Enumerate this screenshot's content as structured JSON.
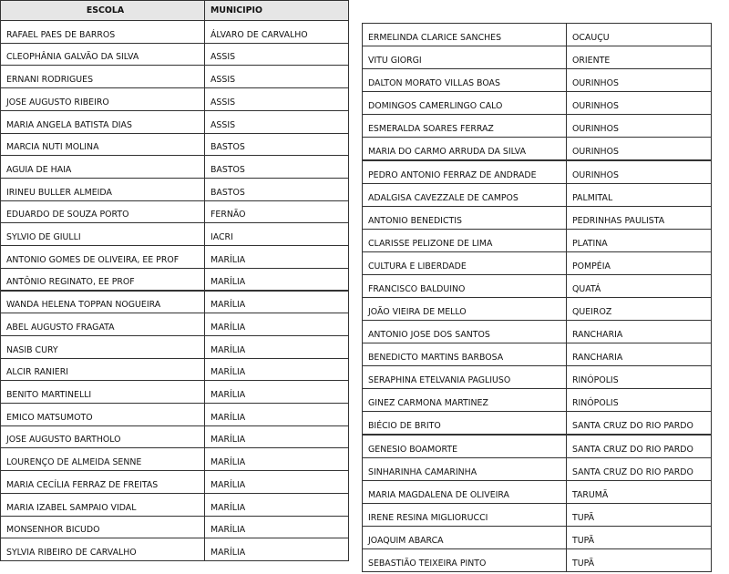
{
  "left_table": {
    "header": [
      "ESCOLA",
      "MUNICIPIO"
    ],
    "rows": [
      [
        "RAFAEL PAES DE BARROS",
        "ÁLVARO DE CARVALHO"
      ],
      [
        "CLEOPHÂNIA GALVÃO DA SILVA",
        "ASSIS"
      ],
      [
        "ERNANI RODRIGUES",
        "ASSIS"
      ],
      [
        "JOSE AUGUSTO RIBEIRO",
        "ASSIS"
      ],
      [
        "MARIA ANGELA BATISTA DIAS",
        "ASSIS"
      ],
      [
        "MARCIA NUTI MOLINA",
        "BASTOS"
      ],
      [
        "AGUIA DE HAIA",
        "BASTOS"
      ],
      [
        "IRINEU BULLER ALMEIDA",
        "BASTOS"
      ],
      [
        "EDUARDO DE SOUZA PORTO",
        "FERNÃO"
      ],
      [
        "SYLVIO DE GIULLI",
        "IACRI"
      ],
      [
        "ANTONIO GOMES DE OLIVEIRA, EE PROF",
        "MARÍLIA"
      ],
      [
        "ANTÔNIO REGINATO, EE PROF",
        "MARÍLIA"
      ],
      [
        "WANDA HELENA TOPPAN NOGUEIRA",
        "MARÍLIA"
      ],
      [
        "ABEL AUGUSTO FRAGATA",
        "MARÍLIA"
      ],
      [
        "NASIB CURY",
        "MARÍLIA"
      ],
      [
        "ALCIR RANIERI",
        "MARÍLIA"
      ],
      [
        "BENITO MARTINELLI",
        "MARÍLIA"
      ],
      [
        "EMICO MATSUMOTO",
        "MARÍLIA"
      ],
      [
        "JOSE AUGUSTO BARTHOLO",
        "MARÍLIA"
      ],
      [
        "LOURENÇO DE ALMEIDA SENNE",
        "MARÍLIA"
      ],
      [
        "MARIA CECÍLIA FERRAZ DE FREITAS",
        "MARÍLIA"
      ],
      [
        "MARIA IZABEL SAMPAIO VIDAL",
        "MARÍLIA"
      ],
      [
        "MONSENHOR BICUDO",
        "MARÍLIA"
      ],
      [
        "SYLVIA RIBEIRO DE CARVALHO",
        "MARÍLIA"
      ]
    ]
  },
  "right_table": {
    "rows": [
      [
        "ERMELINDA CLARICE SANCHES",
        "OCAUÇU"
      ],
      [
        "VITU GIORGI",
        "ORIENTE"
      ],
      [
        "DALTON MORATO VILLAS BOAS",
        "OURINHOS"
      ],
      [
        "DOMINGOS CAMERLINGO CALO",
        "OURINHOS"
      ],
      [
        "ESMERALDA SOARES FERRAZ",
        "OURINHOS"
      ],
      [
        "MARIA DO CARMO ARRUDA DA SILVA",
        "OURINHOS"
      ],
      [
        "PEDRO ANTONIO FERRAZ DE ANDRADE",
        "OURINHOS"
      ],
      [
        "ADALGISA CAVEZZALE DE CAMPOS",
        "PALMITAL"
      ],
      [
        "ANTONIO BENEDICTIS",
        "PEDRINHAS PAULISTA"
      ],
      [
        "CLARISSE PELIZONE DE LIMA",
        "PLATINA"
      ],
      [
        "CULTURA E LIBERDADE",
        "POMPÉIA"
      ],
      [
        "FRANCISCO BALDUINO",
        "QUATÁ"
      ],
      [
        "JOÃO VIEIRA DE MELLO",
        "QUEIROZ"
      ],
      [
        "ANTONIO JOSE DOS SANTOS",
        "RANCHARIA"
      ],
      [
        "BENEDICTO MARTINS BARBOSA",
        "RANCHARIA"
      ],
      [
        "SERAPHINA ETELVANIA PAGLIUSO",
        "RINÓPOLIS"
      ],
      [
        "GINEZ CARMONA MARTINEZ",
        "RINÓPOLIS"
      ],
      [
        "BIÉCIO DE BRITO",
        "SANTA CRUZ DO RIO PARDO"
      ],
      [
        "GENESIO BOAMORTE",
        "SANTA CRUZ DO RIO PARDO"
      ],
      [
        "SINHARINHA CAMARINHA",
        "SANTA CRUZ DO RIO PARDO"
      ],
      [
        "MARIA MAGDALENA DE OLIVEIRA",
        "TARUMÃ"
      ],
      [
        "IRENE RESINA MIGLIORUCCI",
        "TUPÃ"
      ],
      [
        "JOAQUIM ABARCA",
        "TUPÃ"
      ],
      [
        "SEBASTIÃO TEIXEIRA PINTO",
        "TUPÃ"
      ]
    ]
  }
}
